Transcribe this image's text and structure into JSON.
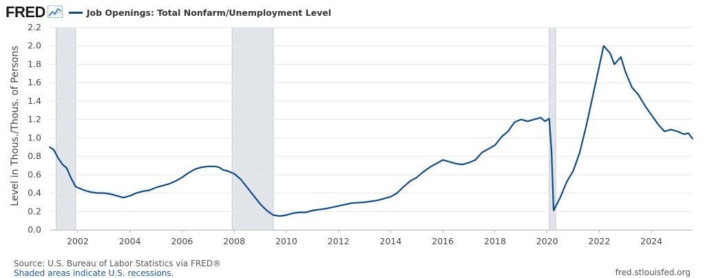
{
  "header": {
    "logo_text": "FRED",
    "legend_label": "Job Openings: Total Nonfarm/Unemployment Level",
    "logo_icon": "chart-line-icon"
  },
  "footer": {
    "source": "Source: U.S. Bureau of Labor Statistics via FRED®",
    "shading_note": "Shaded areas indicate U.S. recessions.",
    "site": "fred.stlouisfed.org"
  },
  "colors": {
    "series": "#0c4a8b",
    "recession": "#e1e5ea",
    "grid": "#e6e6e6",
    "tick_text": "#444444"
  },
  "chart_data": {
    "type": "line",
    "title": "",
    "xlabel": "",
    "ylabel": "Level in Thous./Thous. of Persons",
    "xlim": [
      2000.92,
      2025.58
    ],
    "ylim": [
      0.0,
      2.2
    ],
    "x_ticks": [
      "2002",
      "2004",
      "2006",
      "2008",
      "2010",
      "2012",
      "2014",
      "2016",
      "2018",
      "2020",
      "2022",
      "2024"
    ],
    "y_ticks": [
      "0.0",
      "0.2",
      "0.4",
      "0.6",
      "0.8",
      "1.0",
      "1.2",
      "1.4",
      "1.6",
      "1.8",
      "2.0",
      "2.2"
    ],
    "grid": "horizontal",
    "recessions": [
      [
        2001.17,
        2001.92
      ],
      [
        2007.92,
        2009.5
      ],
      [
        2020.08,
        2020.33
      ]
    ],
    "series": [
      {
        "name": "Job Openings: Total Nonfarm/Unemployment Level",
        "points": [
          [
            2000.92,
            0.9
          ],
          [
            2001.08,
            0.87
          ],
          [
            2001.25,
            0.78
          ],
          [
            2001.42,
            0.71
          ],
          [
            2001.58,
            0.67
          ],
          [
            2001.75,
            0.56
          ],
          [
            2001.92,
            0.47
          ],
          [
            2002.08,
            0.45
          ],
          [
            2002.25,
            0.43
          ],
          [
            2002.5,
            0.41
          ],
          [
            2002.75,
            0.4
          ],
          [
            2003.0,
            0.4
          ],
          [
            2003.25,
            0.39
          ],
          [
            2003.5,
            0.37
          ],
          [
            2003.75,
            0.35
          ],
          [
            2004.0,
            0.37
          ],
          [
            2004.25,
            0.4
          ],
          [
            2004.5,
            0.42
          ],
          [
            2004.75,
            0.43
          ],
          [
            2005.0,
            0.46
          ],
          [
            2005.25,
            0.48
          ],
          [
            2005.5,
            0.5
          ],
          [
            2005.75,
            0.53
          ],
          [
            2006.0,
            0.57
          ],
          [
            2006.25,
            0.62
          ],
          [
            2006.5,
            0.66
          ],
          [
            2006.75,
            0.68
          ],
          [
            2007.0,
            0.69
          ],
          [
            2007.25,
            0.69
          ],
          [
            2007.42,
            0.68
          ],
          [
            2007.58,
            0.65
          ],
          [
            2007.75,
            0.64
          ],
          [
            2008.0,
            0.61
          ],
          [
            2008.25,
            0.55
          ],
          [
            2008.5,
            0.46
          ],
          [
            2008.75,
            0.37
          ],
          [
            2009.0,
            0.28
          ],
          [
            2009.25,
            0.21
          ],
          [
            2009.5,
            0.16
          ],
          [
            2009.75,
            0.15
          ],
          [
            2010.0,
            0.16
          ],
          [
            2010.25,
            0.18
          ],
          [
            2010.5,
            0.19
          ],
          [
            2010.75,
            0.19
          ],
          [
            2011.0,
            0.21
          ],
          [
            2011.5,
            0.23
          ],
          [
            2012.0,
            0.26
          ],
          [
            2012.5,
            0.29
          ],
          [
            2013.0,
            0.3
          ],
          [
            2013.5,
            0.32
          ],
          [
            2014.0,
            0.36
          ],
          [
            2014.25,
            0.4
          ],
          [
            2014.5,
            0.47
          ],
          [
            2014.75,
            0.53
          ],
          [
            2015.0,
            0.57
          ],
          [
            2015.25,
            0.63
          ],
          [
            2015.5,
            0.68
          ],
          [
            2015.75,
            0.72
          ],
          [
            2016.0,
            0.76
          ],
          [
            2016.25,
            0.74
          ],
          [
            2016.5,
            0.72
          ],
          [
            2016.75,
            0.71
          ],
          [
            2017.0,
            0.73
          ],
          [
            2017.25,
            0.76
          ],
          [
            2017.5,
            0.84
          ],
          [
            2017.75,
            0.88
          ],
          [
            2018.0,
            0.92
          ],
          [
            2018.25,
            1.01
          ],
          [
            2018.5,
            1.07
          ],
          [
            2018.75,
            1.17
          ],
          [
            2019.0,
            1.2
          ],
          [
            2019.25,
            1.18
          ],
          [
            2019.5,
            1.2
          ],
          [
            2019.75,
            1.22
          ],
          [
            2019.92,
            1.18
          ],
          [
            2020.08,
            1.21
          ],
          [
            2020.17,
            0.85
          ],
          [
            2020.25,
            0.21
          ],
          [
            2020.5,
            0.35
          ],
          [
            2020.75,
            0.52
          ],
          [
            2021.0,
            0.64
          ],
          [
            2021.25,
            0.84
          ],
          [
            2021.5,
            1.13
          ],
          [
            2021.75,
            1.45
          ],
          [
            2022.0,
            1.78
          ],
          [
            2022.17,
            2.0
          ],
          [
            2022.42,
            1.92
          ],
          [
            2022.58,
            1.8
          ],
          [
            2022.83,
            1.88
          ],
          [
            2023.0,
            1.72
          ],
          [
            2023.25,
            1.55
          ],
          [
            2023.5,
            1.47
          ],
          [
            2023.75,
            1.35
          ],
          [
            2024.0,
            1.25
          ],
          [
            2024.25,
            1.15
          ],
          [
            2024.5,
            1.07
          ],
          [
            2024.75,
            1.09
          ],
          [
            2025.0,
            1.07
          ],
          [
            2025.25,
            1.04
          ],
          [
            2025.42,
            1.05
          ],
          [
            2025.58,
            0.99
          ]
        ]
      }
    ]
  }
}
